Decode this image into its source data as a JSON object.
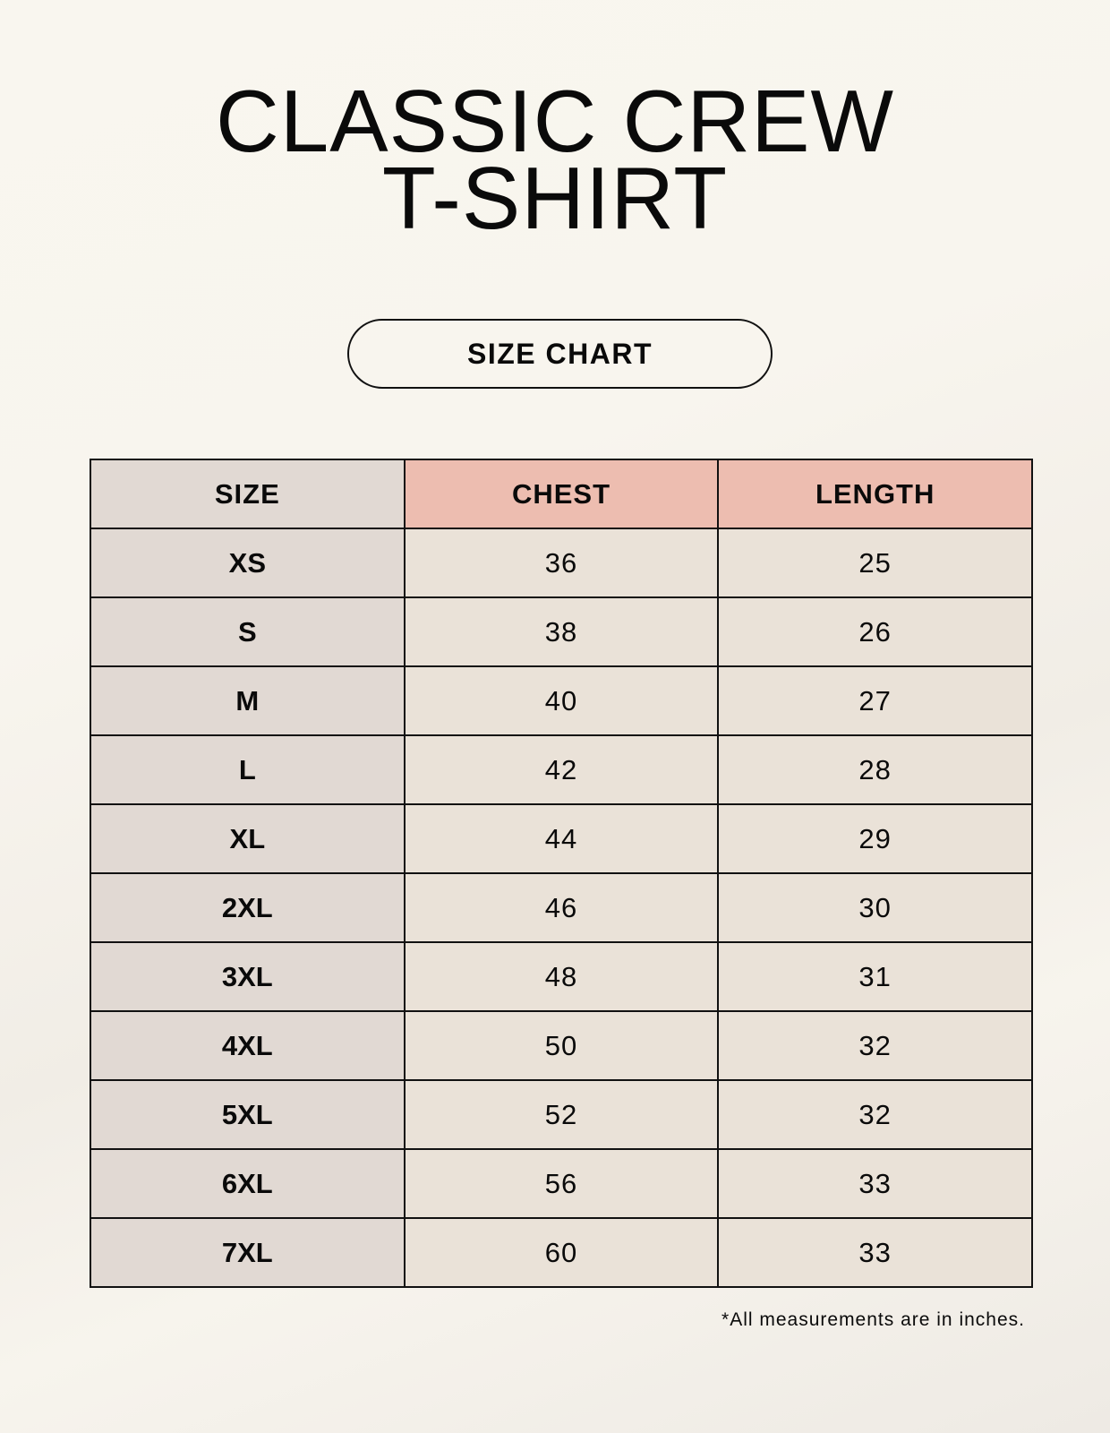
{
  "title": {
    "line1": "CLASSIC CREW",
    "line2": "T-SHIRT"
  },
  "badge": "SIZE CHART",
  "table": {
    "headers": [
      "SIZE",
      "CHEST",
      "LENGTH"
    ],
    "rows": [
      [
        "XS",
        "36",
        "25"
      ],
      [
        "S",
        "38",
        "26"
      ],
      [
        "M",
        "40",
        "27"
      ],
      [
        "L",
        "42",
        "28"
      ],
      [
        "XL",
        "44",
        "29"
      ],
      [
        "2XL",
        "46",
        "30"
      ],
      [
        "3XL",
        "48",
        "31"
      ],
      [
        "4XL",
        "50",
        "32"
      ],
      [
        "5XL",
        "52",
        "32"
      ],
      [
        "6XL",
        "56",
        "33"
      ],
      [
        "7XL",
        "60",
        "33"
      ]
    ]
  },
  "footnote": "*All measurements are in inches.",
  "colors": {
    "size_column": "#e1d9d3",
    "header_accent": "#edbdb0",
    "value_cells": "#eae2d8"
  }
}
